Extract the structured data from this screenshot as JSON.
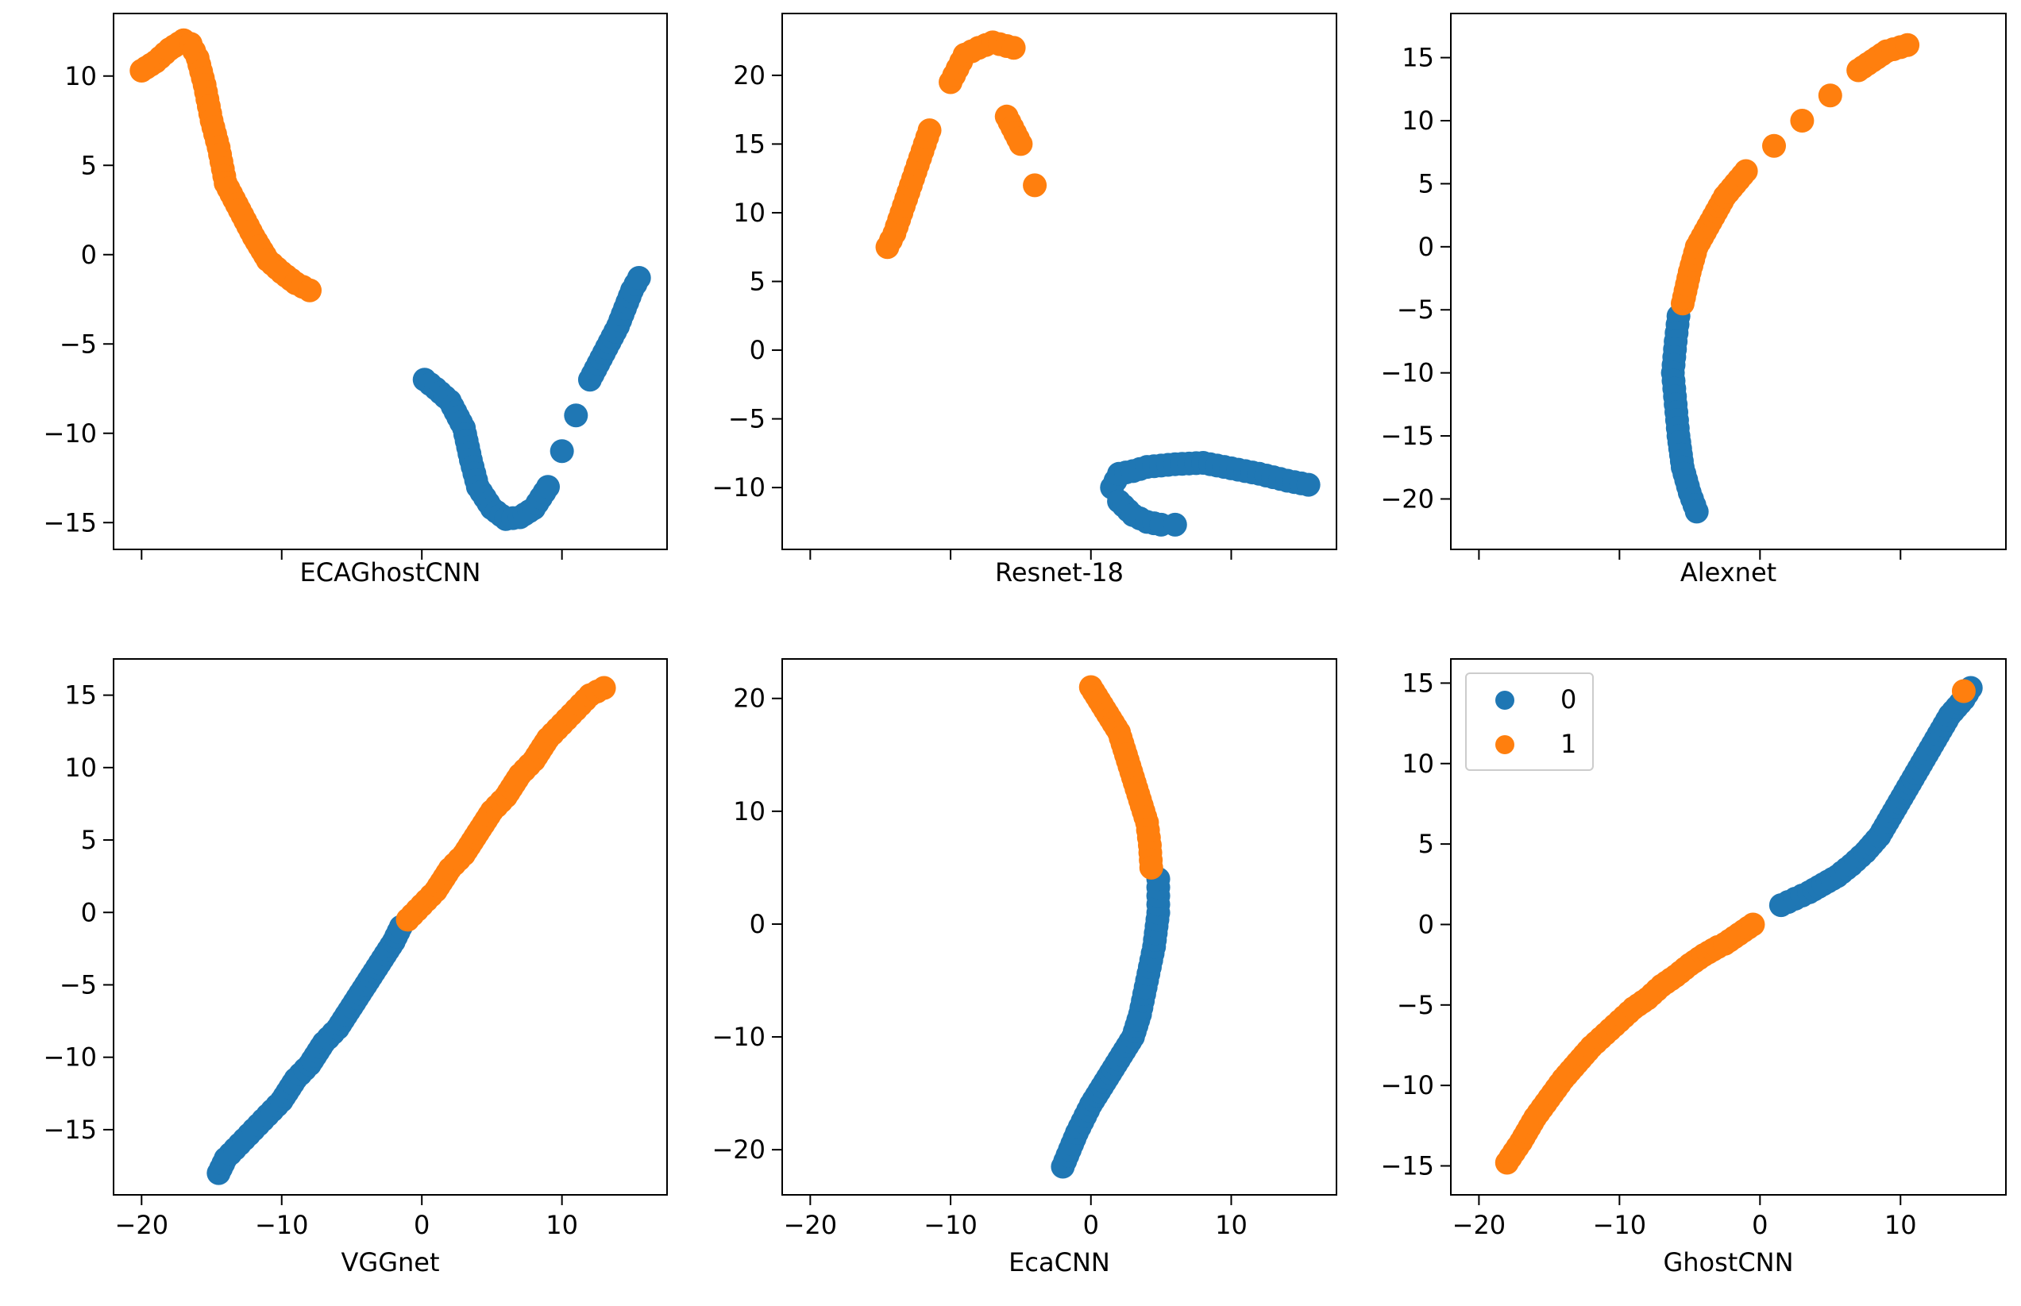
{
  "figure": {
    "colors": {
      "class0": "#1f77b4",
      "class1": "#ff7f0e",
      "axes": "#000000",
      "legend_border": "#cccccc"
    },
    "legend": {
      "placement": "upper-left of GhostCNN panel",
      "entries": [
        {
          "label": "0",
          "color": "#1f77b4"
        },
        {
          "label": "1",
          "color": "#ff7f0e"
        }
      ]
    }
  },
  "chart_data": [
    {
      "type": "scatter",
      "title": "",
      "xlabel": "ECAGhostCNN",
      "ylabel": "",
      "xlim": [
        -22,
        17.5
      ],
      "ylim": [
        -16.5,
        13.5
      ],
      "xticks": [
        -20,
        -10,
        0,
        10
      ],
      "xtick_labels": [
        "",
        "",
        "",
        ""
      ],
      "yticks": [
        -15,
        -10,
        -5,
        0,
        5,
        10
      ],
      "ytick_labels": [
        "−15",
        "−10",
        "−5",
        "0",
        "5",
        "10"
      ],
      "series": [
        {
          "name": "0",
          "color": "#1f77b4",
          "points": [
            [
              0.2,
              -7
            ],
            [
              1,
              -7.5
            ],
            [
              2,
              -8.2
            ],
            [
              3,
              -9.7
            ],
            [
              3.5,
              -11.5
            ],
            [
              4,
              -13
            ],
            [
              5,
              -14.2
            ],
            [
              6,
              -14.8
            ],
            [
              7,
              -14.7
            ],
            [
              8,
              -14.2
            ],
            [
              9,
              -13
            ],
            [
              10,
              -11
            ],
            [
              11,
              -9
            ],
            [
              12,
              -7
            ],
            [
              13,
              -5.5
            ],
            [
              14,
              -4
            ],
            [
              14.5,
              -3
            ],
            [
              15,
              -2
            ],
            [
              15.5,
              -1.3
            ]
          ]
        },
        {
          "name": "1",
          "color": "#ff7f0e",
          "points": [
            [
              -20,
              10.3
            ],
            [
              -19,
              10.8
            ],
            [
              -18,
              11.5
            ],
            [
              -17,
              12
            ],
            [
              -16.5,
              11.8
            ],
            [
              -16,
              11
            ],
            [
              -15.5,
              9.5
            ],
            [
              -15,
              7.5
            ],
            [
              -14.5,
              6
            ],
            [
              -14,
              4
            ],
            [
              -13,
              2.5
            ],
            [
              -12,
              1
            ],
            [
              -11,
              -0.3
            ],
            [
              -10,
              -1
            ],
            [
              -9,
              -1.6
            ],
            [
              -8,
              -2
            ]
          ]
        }
      ]
    },
    {
      "type": "scatter",
      "title": "",
      "xlabel": "Resnet-18",
      "ylabel": "",
      "xlim": [
        -22,
        17.5
      ],
      "ylim": [
        -14.5,
        24.5
      ],
      "xticks": [
        -20,
        -10,
        0,
        10
      ],
      "xtick_labels": [
        "",
        "",
        "",
        ""
      ],
      "yticks": [
        -10,
        -5,
        0,
        5,
        10,
        15,
        20
      ],
      "ytick_labels": [
        "−10",
        "−5",
        "0",
        "5",
        "10",
        "15",
        "20"
      ],
      "series": [
        {
          "name": "0",
          "color": "#1f77b4",
          "points": [
            [
              1.5,
              -10
            ],
            [
              2,
              -9
            ],
            [
              3,
              -8.8
            ],
            [
              4,
              -8.5
            ],
            [
              6,
              -8.3
            ],
            [
              8,
              -8.2
            ],
            [
              10,
              -8.6
            ],
            [
              12,
              -9
            ],
            [
              14,
              -9.5
            ],
            [
              15.5,
              -9.8
            ],
            [
              2,
              -11
            ],
            [
              3,
              -12
            ],
            [
              4,
              -12.5
            ],
            [
              5,
              -12.7
            ],
            [
              6,
              -12.7
            ]
          ]
        },
        {
          "name": "1",
          "color": "#ff7f0e",
          "points": [
            [
              -14.5,
              7.5
            ],
            [
              -14,
              8.5
            ],
            [
              -13.5,
              10
            ],
            [
              -13,
              11.5
            ],
            [
              -12.5,
              13
            ],
            [
              -12,
              14.5
            ],
            [
              -11.5,
              16
            ],
            [
              -10,
              19.5
            ],
            [
              -9.5,
              20.5
            ],
            [
              -9,
              21.5
            ],
            [
              -8,
              22
            ],
            [
              -7,
              22.4
            ],
            [
              -5.5,
              22
            ],
            [
              -6,
              17
            ],
            [
              -5,
              15
            ],
            [
              -4,
              12
            ]
          ]
        }
      ]
    },
    {
      "type": "scatter",
      "title": "",
      "xlabel": "Alexnet",
      "ylabel": "",
      "xlim": [
        -22,
        17.5
      ],
      "ylim": [
        -24,
        18.5
      ],
      "xticks": [
        -20,
        -10,
        0,
        10
      ],
      "xtick_labels": [
        "",
        "",
        "",
        ""
      ],
      "yticks": [
        -20,
        -15,
        -10,
        -5,
        0,
        5,
        10,
        15
      ],
      "ytick_labels": [
        "−20",
        "−15",
        "−10",
        "−5",
        "0",
        "5",
        "10",
        "15"
      ],
      "series": [
        {
          "name": "0",
          "color": "#1f77b4",
          "points": [
            [
              -5.8,
              -5.5
            ],
            [
              -6,
              -7.5
            ],
            [
              -6.2,
              -10
            ],
            [
              -6,
              -12.5
            ],
            [
              -5.8,
              -15
            ],
            [
              -5.5,
              -17.5
            ],
            [
              -5,
              -19.5
            ],
            [
              -4.5,
              -21
            ]
          ]
        },
        {
          "name": "1",
          "color": "#ff7f0e",
          "points": [
            [
              -5.5,
              -4.5
            ],
            [
              -5,
              -2
            ],
            [
              -4.5,
              0
            ],
            [
              -3.5,
              2
            ],
            [
              -2.5,
              4
            ],
            [
              -1,
              6
            ],
            [
              1,
              8
            ],
            [
              3,
              10
            ],
            [
              5,
              12
            ],
            [
              7,
              14
            ],
            [
              9,
              15.5
            ],
            [
              10.5,
              16
            ]
          ]
        }
      ]
    },
    {
      "type": "scatter",
      "title": "",
      "xlabel": "VGGnet",
      "ylabel": "",
      "xlim": [
        -22,
        17.5
      ],
      "ylim": [
        -19.5,
        17.5
      ],
      "xticks": [
        -20,
        -10,
        0,
        10
      ],
      "xtick_labels": [
        "−20",
        "−10",
        "0",
        "10"
      ],
      "yticks": [
        -15,
        -10,
        -5,
        0,
        5,
        10,
        15
      ],
      "ytick_labels": [
        "−15",
        "−10",
        "−5",
        "0",
        "5",
        "10",
        "15"
      ],
      "series": [
        {
          "name": "0",
          "color": "#1f77b4",
          "points": [
            [
              -14.5,
              -18
            ],
            [
              -14,
              -17
            ],
            [
              -13,
              -16
            ],
            [
              -12,
              -15
            ],
            [
              -11,
              -14
            ],
            [
              -10,
              -13
            ],
            [
              -9,
              -11.5
            ],
            [
              -8,
              -10.5
            ],
            [
              -7,
              -9
            ],
            [
              -6,
              -8
            ],
            [
              -5,
              -6.5
            ],
            [
              -4,
              -5
            ],
            [
              -3,
              -3.5
            ],
            [
              -2,
              -2
            ],
            [
              -1.5,
              -1
            ]
          ]
        },
        {
          "name": "1",
          "color": "#ff7f0e",
          "points": [
            [
              -1,
              -0.5
            ],
            [
              0,
              0.5
            ],
            [
              1,
              1.5
            ],
            [
              2,
              3
            ],
            [
              3,
              4
            ],
            [
              4,
              5.5
            ],
            [
              5,
              7
            ],
            [
              6,
              8
            ],
            [
              7,
              9.5
            ],
            [
              8,
              10.5
            ],
            [
              9,
              12
            ],
            [
              10,
              13
            ],
            [
              11,
              14
            ],
            [
              12,
              15
            ],
            [
              13,
              15.5
            ]
          ]
        }
      ]
    },
    {
      "type": "scatter",
      "title": "",
      "xlabel": "EcaCNN",
      "ylabel": "",
      "xlim": [
        -22,
        17.5
      ],
      "ylim": [
        -24,
        23.5
      ],
      "xticks": [
        -20,
        -10,
        0,
        10
      ],
      "xtick_labels": [
        "−20",
        "−10",
        "0",
        "10"
      ],
      "yticks": [
        -20,
        -10,
        0,
        10,
        20
      ],
      "ytick_labels": [
        "−20",
        "−10",
        "0",
        "10",
        "20"
      ],
      "series": [
        {
          "name": "0",
          "color": "#1f77b4",
          "points": [
            [
              -2,
              -21.5
            ],
            [
              -1.5,
              -20
            ],
            [
              -1,
              -18.5
            ],
            [
              0,
              -16
            ],
            [
              1,
              -14
            ],
            [
              2,
              -12
            ],
            [
              3,
              -10
            ],
            [
              3.5,
              -8
            ],
            [
              4,
              -5
            ],
            [
              4.5,
              -2
            ],
            [
              4.8,
              1
            ],
            [
              4.8,
              4
            ]
          ]
        },
        {
          "name": "1",
          "color": "#ff7f0e",
          "points": [
            [
              0,
              21
            ],
            [
              1,
              19
            ],
            [
              2,
              17
            ],
            [
              2.5,
              15
            ],
            [
              3,
              13
            ],
            [
              3.5,
              11
            ],
            [
              4,
              9
            ],
            [
              4.2,
              7
            ],
            [
              4.3,
              5
            ]
          ]
        }
      ]
    },
    {
      "type": "scatter",
      "title": "",
      "xlabel": "GhostCNN",
      "ylabel": "",
      "xlim": [
        -22,
        17.5
      ],
      "ylim": [
        -16.8,
        16.5
      ],
      "xticks": [
        -20,
        -10,
        0,
        10
      ],
      "xtick_labels": [
        "−20",
        "−10",
        "0",
        "10"
      ],
      "yticks": [
        -15,
        -10,
        -5,
        0,
        5,
        10,
        15
      ],
      "ytick_labels": [
        "−15",
        "−10",
        "−5",
        "0",
        "5",
        "10",
        "15"
      ],
      "series": [
        {
          "name": "0",
          "color": "#1f77b4",
          "points": [
            [
              1.5,
              1.2
            ],
            [
              2.5,
              1.6
            ],
            [
              3.5,
              2
            ],
            [
              4.5,
              2.5
            ],
            [
              5.5,
              3
            ],
            [
              6.5,
              3.7
            ],
            [
              7.5,
              4.5
            ],
            [
              8.5,
              5.5
            ],
            [
              9.5,
              7
            ],
            [
              10.5,
              8.5
            ],
            [
              11.5,
              10
            ],
            [
              12.5,
              11.5
            ],
            [
              13.5,
              13
            ],
            [
              14.5,
              14
            ],
            [
              15,
              14.7
            ]
          ]
        },
        {
          "name": "1",
          "color": "#ff7f0e",
          "points": [
            [
              -18,
              -14.8
            ],
            [
              -17,
              -13.5
            ],
            [
              -16,
              -12
            ],
            [
              -15,
              -10.8
            ],
            [
              -14,
              -9.6
            ],
            [
              -13,
              -8.6
            ],
            [
              -12,
              -7.6
            ],
            [
              -11,
              -6.8
            ],
            [
              -10,
              -6
            ],
            [
              -9,
              -5.2
            ],
            [
              -8,
              -4.6
            ],
            [
              -7,
              -3.8
            ],
            [
              -6,
              -3.2
            ],
            [
              -5,
              -2.5
            ],
            [
              -4,
              -1.9
            ],
            [
              -3,
              -1.4
            ],
            [
              -2.5,
              -1.2
            ],
            [
              -1.5,
              -0.6
            ],
            [
              -0.5,
              0
            ],
            [
              14.5,
              14.5
            ]
          ]
        }
      ]
    }
  ]
}
